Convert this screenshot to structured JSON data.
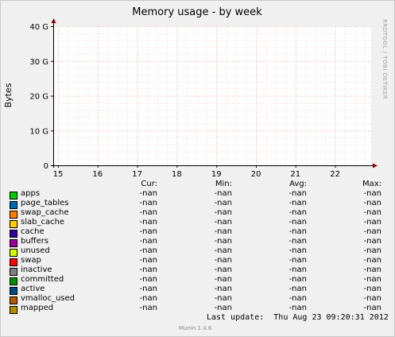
{
  "chart_data": {
    "type": "line",
    "title": "Memory usage - by week",
    "ylabel": "Bytes",
    "xlabel": "",
    "x_ticks": [
      "15",
      "16",
      "17",
      "18",
      "19",
      "20",
      "21",
      "22"
    ],
    "y_ticks": [
      "0",
      "10 G",
      "20 G",
      "30 G",
      "40 G"
    ],
    "y_tick_values": [
      0,
      10,
      20,
      30,
      40
    ],
    "ylim": [
      0,
      40
    ],
    "grid": true,
    "series": [
      {
        "name": "apps",
        "values": []
      },
      {
        "name": "page_tables",
        "values": []
      },
      {
        "name": "swap_cache",
        "values": []
      },
      {
        "name": "slab_cache",
        "values": []
      },
      {
        "name": "cache",
        "values": []
      },
      {
        "name": "buffers",
        "values": []
      },
      {
        "name": "unused",
        "values": []
      },
      {
        "name": "swap",
        "values": []
      },
      {
        "name": "inactive",
        "values": []
      },
      {
        "name": "committed",
        "values": []
      },
      {
        "name": "active",
        "values": []
      },
      {
        "name": "vmalloc_used",
        "values": []
      },
      {
        "name": "mapped",
        "values": []
      }
    ]
  },
  "legend": {
    "headers": {
      "cur": "Cur:",
      "min": "Min:",
      "avg": "Avg:",
      "max": "Max:"
    },
    "rows": [
      {
        "name": "apps",
        "color": "#00CC00",
        "cur": "-nan",
        "min": "-nan",
        "avg": "-nan",
        "max": "-nan"
      },
      {
        "name": "page_tables",
        "color": "#0066B3",
        "cur": "-nan",
        "min": "-nan",
        "avg": "-nan",
        "max": "-nan"
      },
      {
        "name": "swap_cache",
        "color": "#FF8000",
        "cur": "-nan",
        "min": "-nan",
        "avg": "-nan",
        "max": "-nan"
      },
      {
        "name": "slab_cache",
        "color": "#FFCC00",
        "cur": "-nan",
        "min": "-nan",
        "avg": "-nan",
        "max": "-nan"
      },
      {
        "name": "cache",
        "color": "#330099",
        "cur": "-nan",
        "min": "-nan",
        "avg": "-nan",
        "max": "-nan"
      },
      {
        "name": "buffers",
        "color": "#990099",
        "cur": "-nan",
        "min": "-nan",
        "avg": "-nan",
        "max": "-nan"
      },
      {
        "name": "unused",
        "color": "#CCFF00",
        "cur": "-nan",
        "min": "-nan",
        "avg": "-nan",
        "max": "-nan"
      },
      {
        "name": "swap",
        "color": "#FF0000",
        "cur": "-nan",
        "min": "-nan",
        "avg": "-nan",
        "max": "-nan"
      },
      {
        "name": "inactive",
        "color": "#808080",
        "cur": "-nan",
        "min": "-nan",
        "avg": "-nan",
        "max": "-nan"
      },
      {
        "name": "committed",
        "color": "#008F00",
        "cur": "-nan",
        "min": "-nan",
        "avg": "-nan",
        "max": "-nan"
      },
      {
        "name": "active",
        "color": "#00487D",
        "cur": "-nan",
        "min": "-nan",
        "avg": "-nan",
        "max": "-nan"
      },
      {
        "name": "vmalloc_used",
        "color": "#B35A00",
        "cur": "-nan",
        "min": "-nan",
        "avg": "-nan",
        "max": "-nan"
      },
      {
        "name": "mapped",
        "color": "#B38F00",
        "cur": "-nan",
        "min": "-nan",
        "avg": "-nan",
        "max": "-nan"
      }
    ]
  },
  "footer": {
    "last_update": "Last update:  Thu Aug 23 09:20:31 2012",
    "munin_version": "Munin 1.4.6"
  },
  "credit": "RRDTOOL / TOBI OETIKER"
}
